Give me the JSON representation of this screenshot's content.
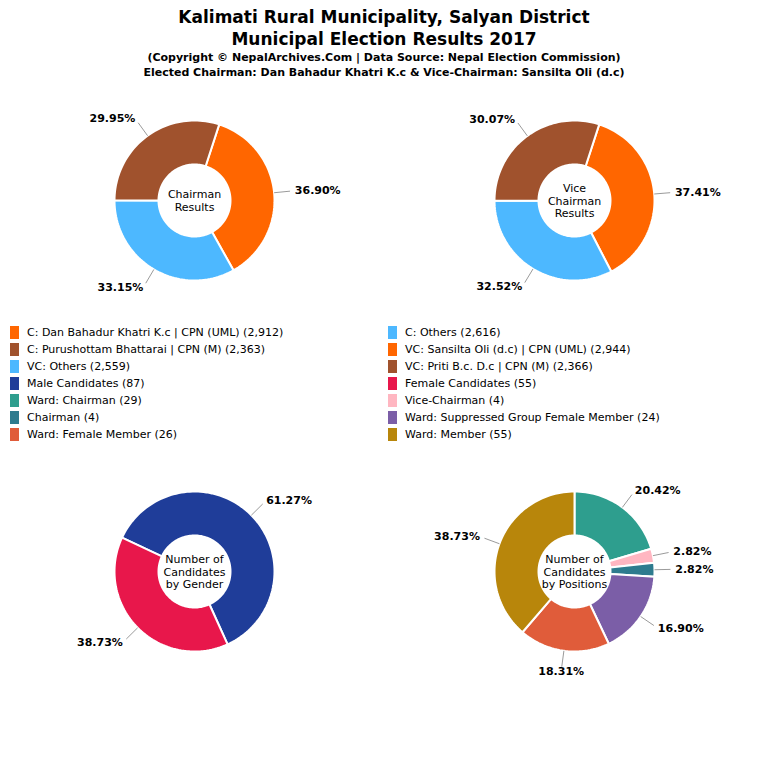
{
  "title": [
    "Kalimati Rural Municipality, Salyan District",
    "Municipal Election Results 2017"
  ],
  "subtitle": [
    "(Copyright © NepalArchives.Com | Data Source: Nepal Election Commission)",
    "Elected Chairman: Dan Bahadur Khatri K.c & Vice-Chairman: Sansilta Oli (d.c)"
  ],
  "chart_data": [
    {
      "type": "pie",
      "categories": [
        "C: Dan Bahadur Khatri K.c | CPN (UML) (2,912)",
        "C: Others (2,616)",
        "C: Purushottam Bhattarai | CPN (M) (2,363)"
      ],
      "values": [
        36.9,
        33.15,
        29.95
      ],
      "value_labels": [
        "36.90%",
        "33.15%",
        "29.95%"
      ],
      "colors": [
        "#FF6600",
        "#4DB8FF",
        "#A0522D"
      ],
      "data_labels": true,
      "legend": "center",
      "annotations": [
        "Chairman\nResults"
      ]
    },
    {
      "type": "pie",
      "categories": [
        "VC: Sansilta Oli (d.c) | CPN (UML) (2,944)",
        "VC: Others (2,559)",
        "VC: Priti B.c. D.c | CPN (M) (2,366)"
      ],
      "values": [
        37.41,
        32.52,
        30.07
      ],
      "value_labels": [
        "37.41%",
        "32.52%",
        "30.07%"
      ],
      "colors": [
        "#FF6600",
        "#4DB8FF",
        "#A0522D"
      ],
      "data_labels": true,
      "legend": "center",
      "annotations": [
        "Vice\nChairman\nResults"
      ]
    },
    {
      "type": "pie",
      "categories": [
        "Male Candidates (87)",
        "Female Candidates (55)"
      ],
      "values": [
        61.27,
        38.73
      ],
      "value_labels": [
        "61.27%",
        "38.73%"
      ],
      "colors": [
        "#1F3D99",
        "#E8174B"
      ],
      "data_labels": true,
      "legend": "center",
      "annotations": [
        "Number of\nCandidates\nby Gender"
      ]
    },
    {
      "type": "pie",
      "categories": [
        "Ward: Chairman (29)",
        "Vice-Chairman (4)",
        "Chairman (4)",
        "Ward: Suppressed Group Female Member (24)",
        "Ward: Female Member (26)",
        "Ward: Member (55)"
      ],
      "values": [
        20.42,
        2.82,
        2.82,
        16.9,
        18.31,
        38.73
      ],
      "value_labels": [
        "20.42%",
        "2.82%",
        "2.82%",
        "16.90%",
        "18.31%",
        "38.73%"
      ],
      "colors": [
        "#2E9E8E",
        "#FFB6C1",
        "#2E7B8E",
        "#7B5EA7",
        "#E05C3A",
        "#B8860B"
      ],
      "data_labels": true,
      "legend": "center",
      "annotations": [
        "Number of\nCandidates\nby Positions"
      ]
    }
  ]
}
